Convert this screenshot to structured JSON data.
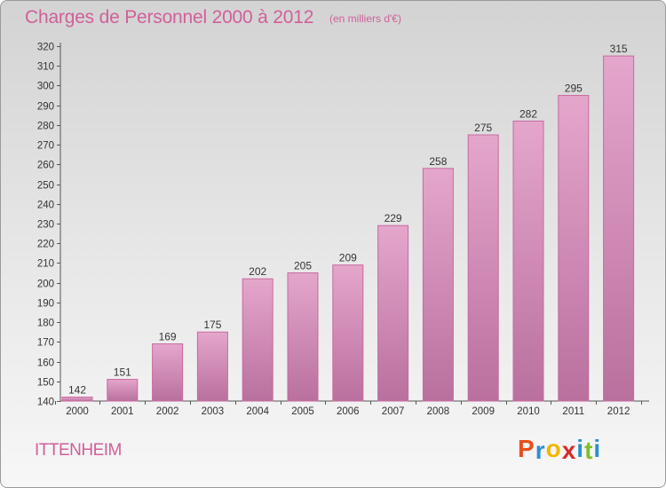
{
  "header": {
    "title": "Charges de Personnel 2000 à 2012",
    "subtitle": "(en milliers d'€)"
  },
  "footer": {
    "town": "ITTENHEIM",
    "logo_letters": [
      {
        "ch": "P",
        "color": "#e94e1b"
      },
      {
        "ch": "r",
        "color": "#2a8fd1"
      },
      {
        "ch": "o",
        "color": "#f2b600"
      },
      {
        "ch": "x",
        "color": "#d62a2a"
      },
      {
        "ch": "i",
        "color": "#2a8fd1"
      },
      {
        "ch": "t",
        "color": "#7fbf2a"
      },
      {
        "ch": "i",
        "color": "#2a8fd1"
      }
    ]
  },
  "colors": {
    "accent": "#d0609a",
    "bar_top": "#e5a6cc",
    "bar_bottom": "#b9709e",
    "bar_edge": "#c9699f"
  },
  "chart_data": {
    "type": "bar",
    "title": "Charges de Personnel 2000 à 2012",
    "subtitle": "(en milliers d'€)",
    "categories": [
      "2000",
      "2001",
      "2002",
      "2003",
      "2004",
      "2005",
      "2006",
      "2007",
      "2008",
      "2009",
      "2010",
      "2011",
      "2012"
    ],
    "values": [
      142,
      151,
      169,
      175,
      202,
      205,
      209,
      229,
      258,
      275,
      282,
      295,
      315
    ],
    "ylim": [
      140,
      320
    ],
    "yticks": [
      140,
      150,
      160,
      170,
      180,
      190,
      200,
      210,
      220,
      230,
      240,
      250,
      260,
      270,
      280,
      290,
      300,
      310,
      320
    ],
    "xlabel": "",
    "ylabel": "",
    "grid": false,
    "data_labels": true
  }
}
